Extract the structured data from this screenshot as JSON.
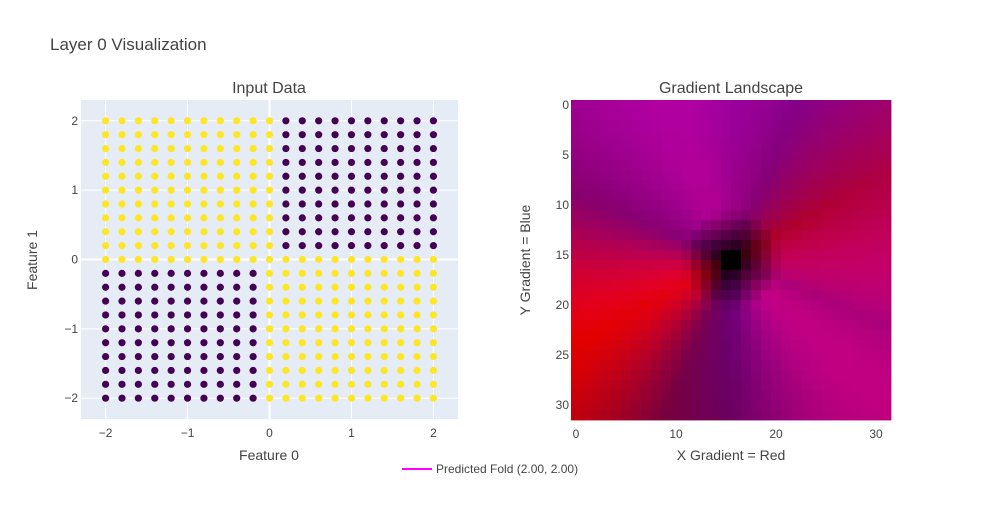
{
  "title": "Layer 0 Visualization",
  "colors": {
    "class_a": "#440154",
    "class_b": "#fde725",
    "plot_bg": "#e5ecf6",
    "legend_line": "#ff00ff"
  },
  "chart_data": [
    {
      "type": "scatter",
      "title": "Input Data",
      "xlabel": "Feature 0",
      "ylabel": "Feature 1",
      "xlim": [
        -2.3,
        2.3
      ],
      "ylim": [
        -2.3,
        2.3
      ],
      "grid": true,
      "xticks": [
        "−2",
        "−1",
        "0",
        "1",
        "2"
      ],
      "yticks": [
        "−2",
        "−1",
        "0",
        "1",
        "2"
      ],
      "tick_values": [
        -2,
        -1,
        0,
        1,
        2
      ],
      "grid_points": {
        "start": -2,
        "end": 2,
        "count": 21,
        "rule": "class_a when x*y > 0 (quadrants I and III), class_b otherwise"
      }
    },
    {
      "type": "heatmap",
      "title": "Gradient Landscape",
      "xlabel": "X Gradient = Red",
      "ylabel": "Y Gradient = Blue",
      "size": [
        32,
        32
      ],
      "xlim": [
        -0.5,
        31.5
      ],
      "ylim": [
        31.5,
        -0.5
      ],
      "xticks": [
        "0",
        "10",
        "20",
        "30"
      ],
      "xtick_values": [
        0,
        10,
        20,
        30
      ],
      "yticks": [
        "0",
        "5",
        "10",
        "15",
        "20",
        "25",
        "30"
      ],
      "ytick_values": [
        0,
        5,
        10,
        15,
        20,
        25,
        30
      ],
      "center": [
        15.5,
        15.5
      ],
      "color_encoding": "red channel = |x gradient|, blue channel = |y gradient|"
    }
  ],
  "legend": {
    "label": "Predicted Fold (2.00, 2.00)",
    "placement": "bottom-center"
  }
}
